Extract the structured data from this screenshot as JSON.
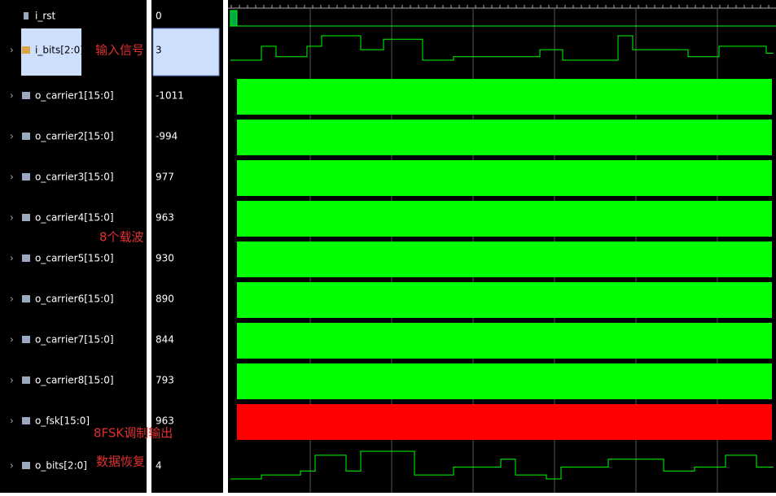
{
  "signals": [
    {
      "name": "i_rst",
      "value": 0
    },
    {
      "name": "i_bits[2:0]",
      "value": 3
    },
    {
      "name": "o_carrier1[15:0]",
      "value": -1011
    },
    {
      "name": "o_carrier2[15:0]",
      "value": -994
    },
    {
      "name": "o_carrier3[15:0]",
      "value": 977
    },
    {
      "name": "o_carrier4[15:0]",
      "value": 963
    },
    {
      "name": "o_carrier5[15:0]",
      "value": 930
    },
    {
      "name": "o_carrier6[15:0]",
      "value": 890
    },
    {
      "name": "o_carrier7[15:0]",
      "value": 844
    },
    {
      "name": "o_carrier8[15:0]",
      "value": 793
    },
    {
      "name": "o_fsk[15:0]",
      "value": 963
    },
    {
      "name": "o_bits[2:0]",
      "value": 4
    }
  ],
  "annotations": [
    "输入信号",
    "8个载波",
    "8FSK调制输出",
    "数据恢复"
  ]
}
